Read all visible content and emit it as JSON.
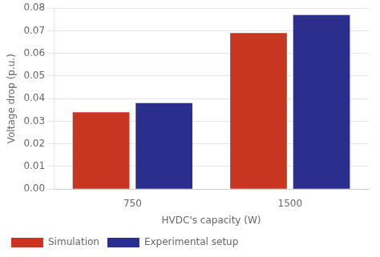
{
  "chart_data": {
    "type": "bar",
    "categories": [
      "750",
      "1500"
    ],
    "series": [
      {
        "name": "Simulation",
        "color": "#C83520",
        "values": [
          0.034,
          0.069
        ]
      },
      {
        "name": "Experimental setup",
        "color": "#2B2E8C",
        "values": [
          0.038,
          0.077
        ]
      }
    ],
    "xlabel": "HVDC's capacity (W)",
    "ylabel": "Voltage drop (p.u.)",
    "ylim": [
      0,
      0.08
    ],
    "yticks": [
      {
        "value": 0,
        "label": "0.00"
      },
      0.01,
      0.02,
      0.03,
      0.04,
      0.05,
      0.06,
      0.07,
      0.08
    ],
    "grid": "y",
    "legend": "lower left"
  }
}
